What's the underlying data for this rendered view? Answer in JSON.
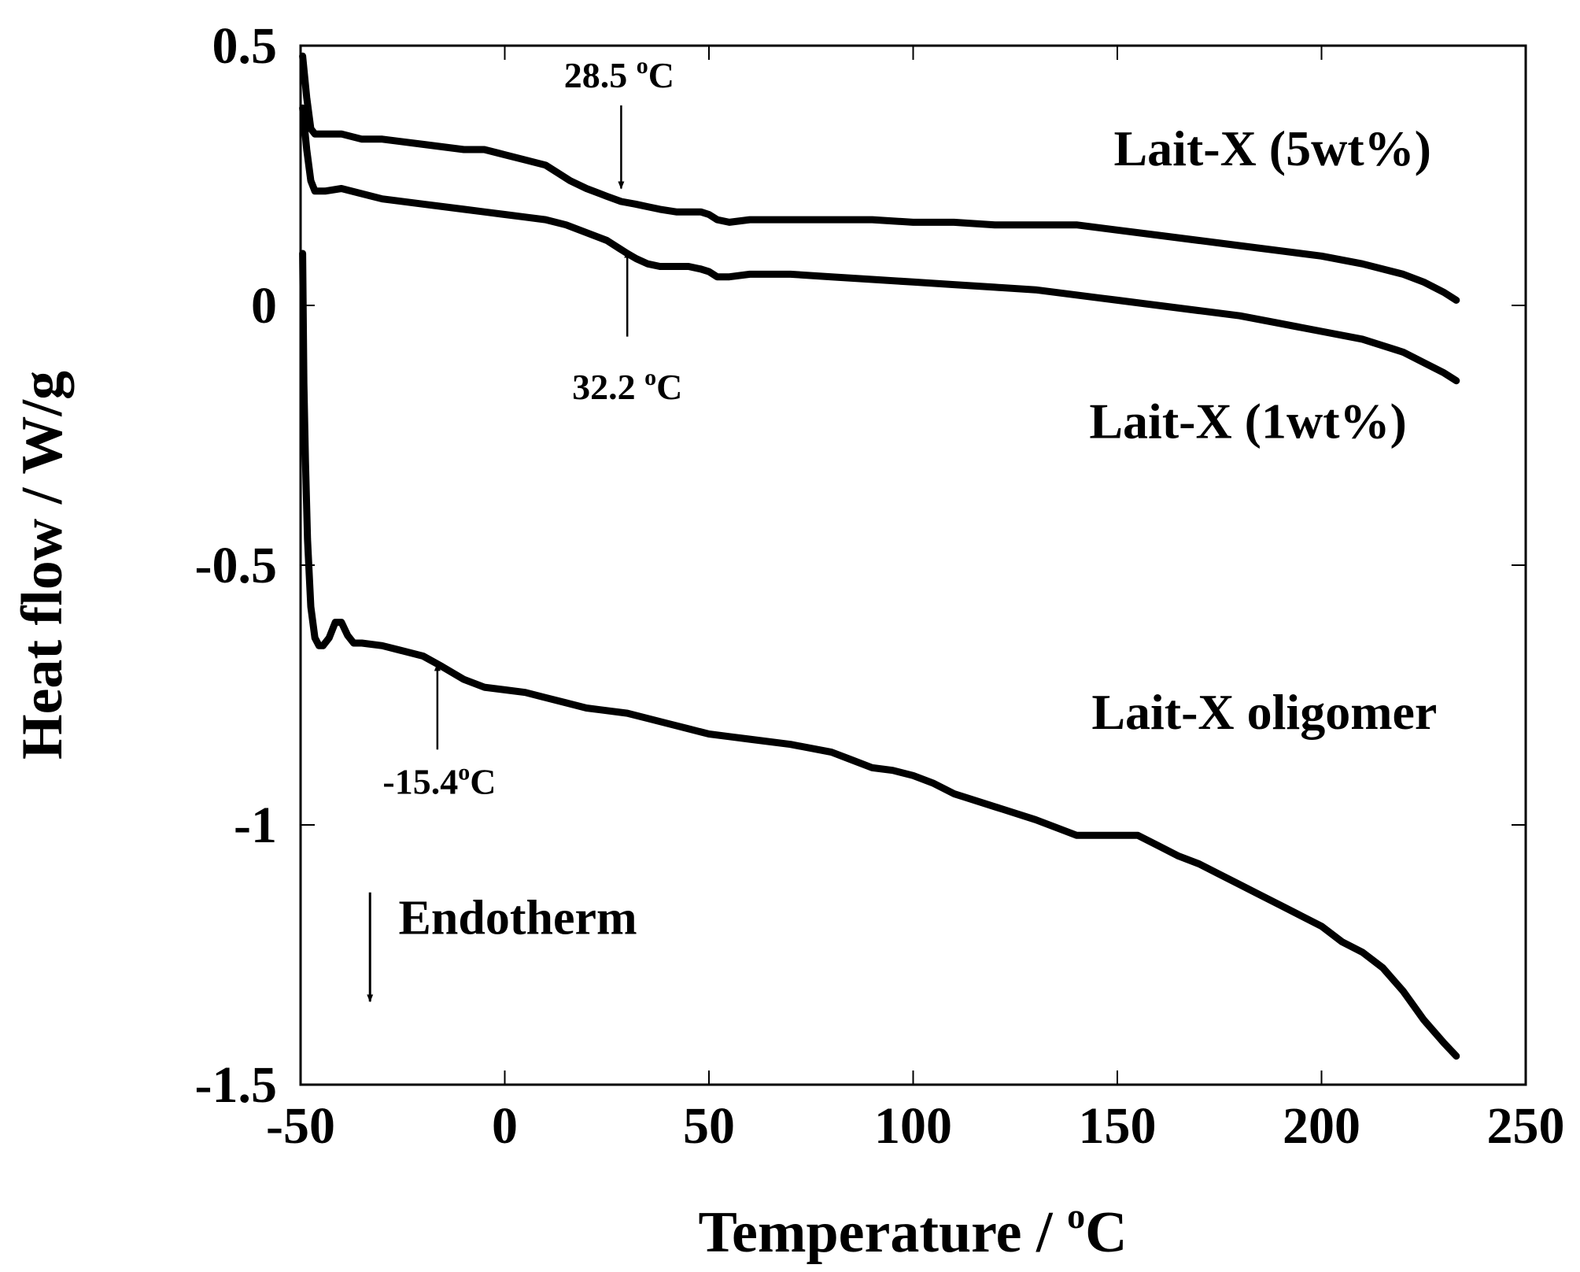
{
  "chart_data": {
    "type": "line",
    "title": "",
    "xlabel": "Temperature / ",
    "xlabel_unit": "C",
    "xlabel_sup": "o",
    "ylabel": "Heat flow / W/g",
    "xlim": [
      -50,
      250
    ],
    "ylim": [
      -1.5,
      0.5
    ],
    "xticks": [
      -50,
      0,
      50,
      100,
      150,
      200,
      250
    ],
    "yticks": [
      -1.5,
      -1,
      -0.5,
      0,
      0.5
    ],
    "xtick_labels": [
      "-50",
      "0",
      "50",
      "100",
      "150",
      "200",
      "250"
    ],
    "ytick_labels": [
      "-1.5",
      "-1",
      "-0.5",
      "0",
      "0.5"
    ],
    "grid": false,
    "line_color": "#000000",
    "series": [
      {
        "name": "Lait-X (5wt%)",
        "x": [
          -49.5,
          -48.5,
          -47.5,
          -46.5,
          -44,
          -40,
          -35,
          -30,
          -20,
          -10,
          -5,
          0,
          5,
          10,
          13,
          16,
          20,
          25,
          28.5,
          32,
          35,
          38,
          42,
          45,
          48,
          50,
          52,
          55,
          60,
          70,
          80,
          90,
          100,
          110,
          120,
          130,
          140,
          150,
          160,
          170,
          180,
          190,
          200,
          210,
          220,
          225,
          230,
          233
        ],
        "y": [
          0.48,
          0.4,
          0.34,
          0.33,
          0.33,
          0.33,
          0.32,
          0.32,
          0.31,
          0.3,
          0.3,
          0.29,
          0.28,
          0.27,
          0.255,
          0.24,
          0.225,
          0.21,
          0.2,
          0.195,
          0.19,
          0.185,
          0.18,
          0.18,
          0.18,
          0.175,
          0.165,
          0.16,
          0.165,
          0.165,
          0.165,
          0.165,
          0.16,
          0.16,
          0.155,
          0.155,
          0.155,
          0.145,
          0.135,
          0.125,
          0.115,
          0.105,
          0.095,
          0.08,
          0.06,
          0.045,
          0.025,
          0.01
        ]
      },
      {
        "name": "Lait-X (1wt%)",
        "x": [
          -49.5,
          -48.5,
          -47.5,
          -46.5,
          -44,
          -40,
          -35,
          -30,
          -20,
          -10,
          -5,
          0,
          5,
          10,
          15,
          20,
          25,
          28,
          30,
          32.2,
          35,
          38,
          42,
          45,
          48,
          50,
          52,
          55,
          60,
          70,
          80,
          90,
          100,
          110,
          120,
          130,
          140,
          150,
          160,
          170,
          180,
          190,
          200,
          210,
          220,
          225,
          230,
          233
        ],
        "y": [
          0.38,
          0.3,
          0.24,
          0.22,
          0.22,
          0.225,
          0.215,
          0.205,
          0.195,
          0.185,
          0.18,
          0.175,
          0.17,
          0.165,
          0.155,
          0.14,
          0.125,
          0.11,
          0.1,
          0.09,
          0.08,
          0.075,
          0.075,
          0.075,
          0.07,
          0.065,
          0.055,
          0.055,
          0.06,
          0.06,
          0.055,
          0.05,
          0.045,
          0.04,
          0.035,
          0.03,
          0.02,
          0.01,
          0.0,
          -0.01,
          -0.02,
          -0.035,
          -0.05,
          -0.065,
          -0.09,
          -0.11,
          -0.13,
          -0.145
        ]
      },
      {
        "name": "Lait-X oligomer",
        "x": [
          -49.5,
          -49.2,
          -48.8,
          -48.3,
          -47.5,
          -46.5,
          -45.5,
          -44.5,
          -43,
          -41.5,
          -40,
          -38.5,
          -37,
          -35,
          -30,
          -25,
          -20,
          -15.4,
          -10,
          -5,
          0,
          5,
          10,
          15,
          20,
          25,
          30,
          35,
          40,
          45,
          50,
          55,
          60,
          70,
          80,
          85,
          90,
          95,
          100,
          105,
          110,
          120,
          130,
          135,
          140,
          145,
          150,
          155,
          160,
          165,
          170,
          175,
          180,
          185,
          190,
          195,
          200,
          205,
          210,
          215,
          220,
          225,
          230,
          233
        ],
        "y": [
          0.1,
          -0.15,
          -0.3,
          -0.45,
          -0.58,
          -0.64,
          -0.655,
          -0.655,
          -0.64,
          -0.61,
          -0.61,
          -0.635,
          -0.65,
          -0.65,
          -0.655,
          -0.665,
          -0.675,
          -0.695,
          -0.72,
          -0.735,
          -0.74,
          -0.745,
          -0.755,
          -0.765,
          -0.775,
          -0.78,
          -0.785,
          -0.795,
          -0.805,
          -0.815,
          -0.825,
          -0.83,
          -0.835,
          -0.845,
          -0.86,
          -0.875,
          -0.89,
          -0.895,
          -0.905,
          -0.92,
          -0.94,
          -0.965,
          -0.99,
          -1.005,
          -1.02,
          -1.02,
          -1.02,
          -1.02,
          -1.04,
          -1.06,
          -1.075,
          -1.095,
          -1.115,
          -1.135,
          -1.155,
          -1.175,
          -1.195,
          -1.225,
          -1.245,
          -1.275,
          -1.32,
          -1.375,
          -1.42,
          -1.445
        ]
      }
    ],
    "annotations": [
      {
        "text": "28.5 ",
        "sup": "o",
        "tail": "C",
        "label_x": 28,
        "label_y": 0.42,
        "arrow_from": [
          28.5,
          0.385
        ],
        "arrow_to": [
          28.5,
          0.225
        ]
      },
      {
        "text": "32.2 ",
        "sup": "o",
        "tail": "C",
        "label_x": 30,
        "label_y": -0.18,
        "arrow_from": [
          30,
          -0.06
        ],
        "arrow_to": [
          30,
          0.105
        ]
      },
      {
        "text": "-15.4",
        "sup": "o",
        "tail": "C",
        "label_x": -16,
        "label_y": -0.94,
        "arrow_from": [
          -16.5,
          -0.855
        ],
        "arrow_to": [
          -16.5,
          -0.69
        ]
      },
      {
        "text": "Lait-X (5wt%)",
        "label_x": 188,
        "label_y": 0.27
      },
      {
        "text": "Lait-X (1wt%)",
        "label_x": 182,
        "label_y": -0.255
      },
      {
        "text": "Lait-X oligomer",
        "label_x": 186,
        "label_y": -0.815
      }
    ],
    "endotherm": {
      "text": "Endotherm",
      "direction": "down",
      "arrow_from": [
        -33,
        -1.13
      ],
      "arrow_to": [
        -33,
        -1.34
      ],
      "label_x": -26,
      "label_y": -1.21
    }
  }
}
